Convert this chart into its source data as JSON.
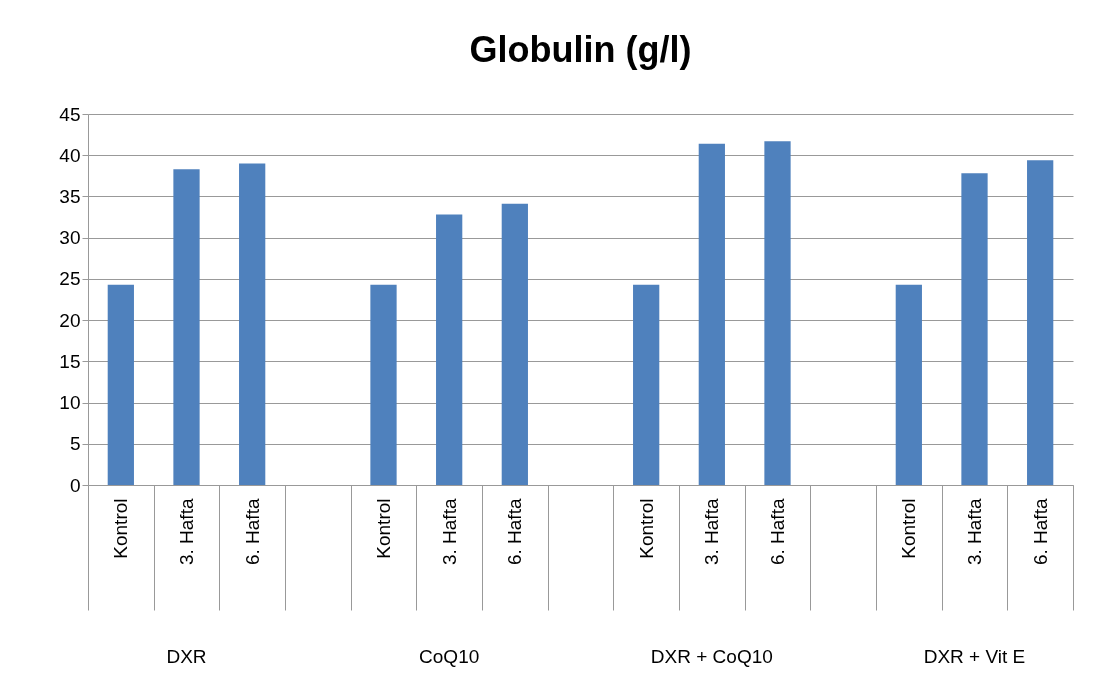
{
  "chart_data": {
    "type": "bar",
    "title": "Globulin (g/l)",
    "categories": [
      "Kontrol",
      "3. Hafta",
      "6. Hafta",
      null,
      "Kontrol",
      "3. Hafta",
      "6. Hafta",
      null,
      "Kontrol",
      "3. Hafta",
      "6. Hafta",
      null,
      "Kontrol",
      "3. Hafta",
      "6. Hafta"
    ],
    "values": [
      24.3,
      38.3,
      39.0,
      null,
      24.3,
      32.8,
      34.1,
      null,
      24.3,
      41.4,
      41.7,
      null,
      24.3,
      37.8,
      39.4
    ],
    "color": "#4f81bd",
    "ylim": [
      0,
      45
    ],
    "yticks": [
      0,
      5,
      10,
      15,
      20,
      25,
      30,
      35,
      40,
      45
    ],
    "grid": "y",
    "annotations": [
      "DXR",
      "CoQ10",
      "DXR + CoQ10",
      "DXR + Vit E"
    ]
  }
}
